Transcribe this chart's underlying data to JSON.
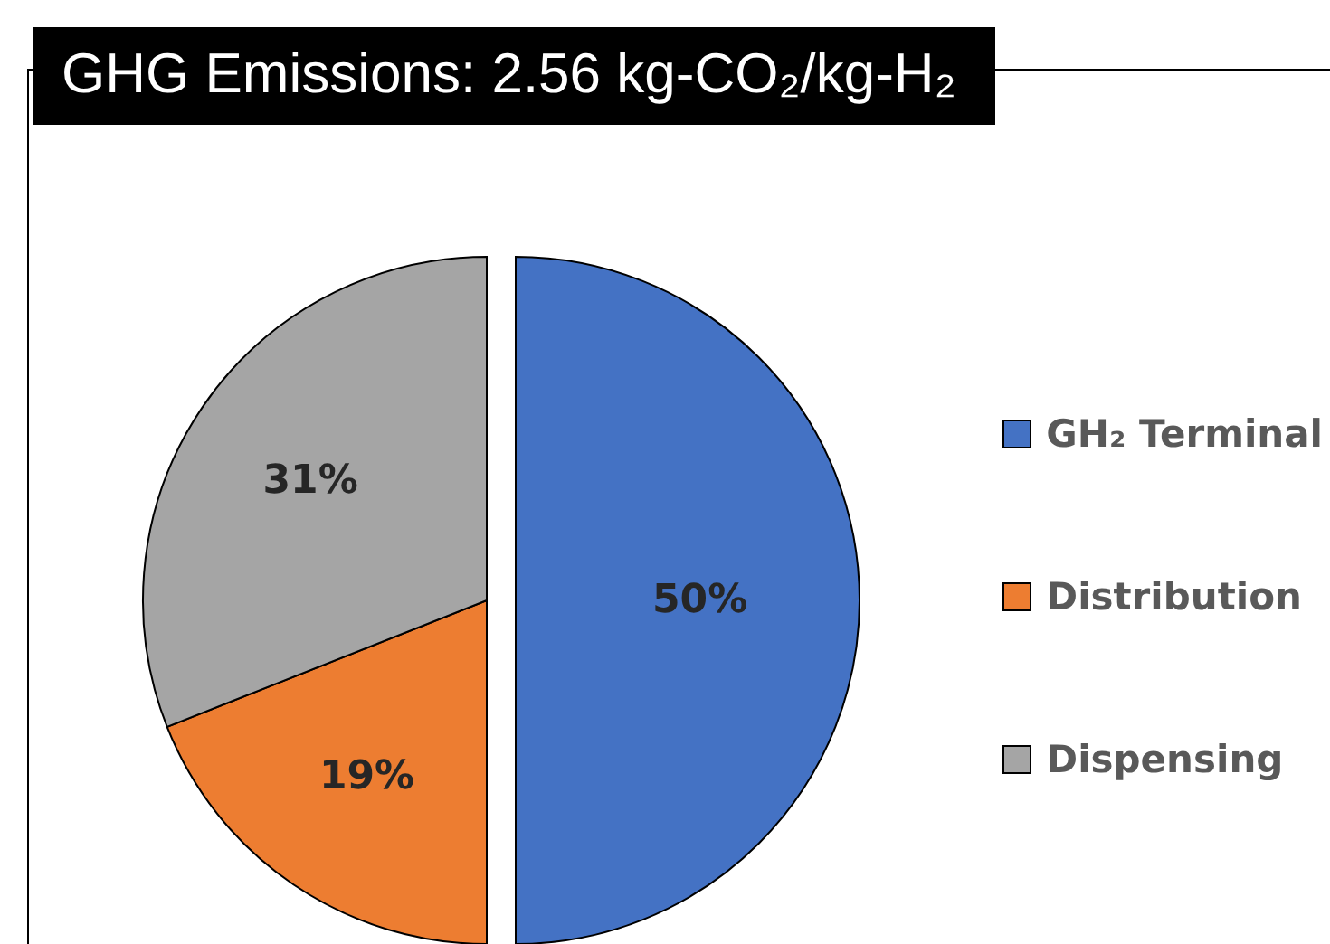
{
  "chart_data": {
    "type": "pie",
    "title": "GHG Emissions: 2.56 kg-CO₂/kg-H₂",
    "categories": [
      "GH₂ Terminal",
      "Distribution",
      "Dispensing"
    ],
    "values": [
      50,
      19,
      31
    ],
    "colors": [
      "#4472c4",
      "#ed7d31",
      "#a5a5a5"
    ],
    "value_labels": [
      "50%",
      "19%",
      "31%"
    ],
    "legend": "right"
  }
}
